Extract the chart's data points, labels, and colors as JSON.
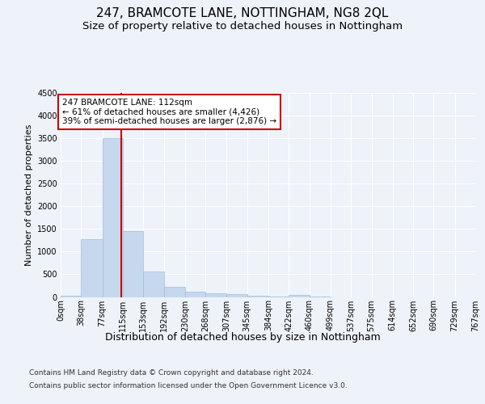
{
  "title1": "247, BRAMCOTE LANE, NOTTINGHAM, NG8 2QL",
  "title2": "Size of property relative to detached houses in Nottingham",
  "xlabel": "Distribution of detached houses by size in Nottingham",
  "ylabel": "Number of detached properties",
  "footer1": "Contains HM Land Registry data © Crown copyright and database right 2024.",
  "footer2": "Contains public sector information licensed under the Open Government Licence v3.0.",
  "annotation_title": "247 BRAMCOTE LANE: 112sqm",
  "annotation_line1": "← 61% of detached houses are smaller (4,426)",
  "annotation_line2": "39% of semi-detached houses are larger (2,876) →",
  "bin_edges": [
    0,
    38,
    77,
    115,
    153,
    192,
    230,
    268,
    307,
    345,
    384,
    422,
    460,
    499,
    537,
    575,
    614,
    652,
    690,
    729,
    767
  ],
  "bar_heights": [
    30,
    1280,
    3500,
    1450,
    570,
    230,
    110,
    80,
    55,
    30,
    15,
    50,
    15,
    0,
    0,
    0,
    0,
    0,
    0,
    0
  ],
  "bar_color": "#c5d8ee",
  "bar_edge_color": "#a0bdd8",
  "vline_color": "#cc0000",
  "vline_x": 112,
  "ylim_max": 4500,
  "yticks": [
    0,
    500,
    1000,
    1500,
    2000,
    2500,
    3000,
    3500,
    4000,
    4500
  ],
  "background_color": "#eef2f9",
  "grid_color": "#ffffff",
  "annotation_box_facecolor": "#ffffff",
  "annotation_box_edgecolor": "#cc0000",
  "title1_fontsize": 11,
  "title2_fontsize": 9.5,
  "xlabel_fontsize": 9,
  "ylabel_fontsize": 8,
  "tick_fontsize": 7,
  "annotation_fontsize": 7.5,
  "footer_fontsize": 6.5
}
